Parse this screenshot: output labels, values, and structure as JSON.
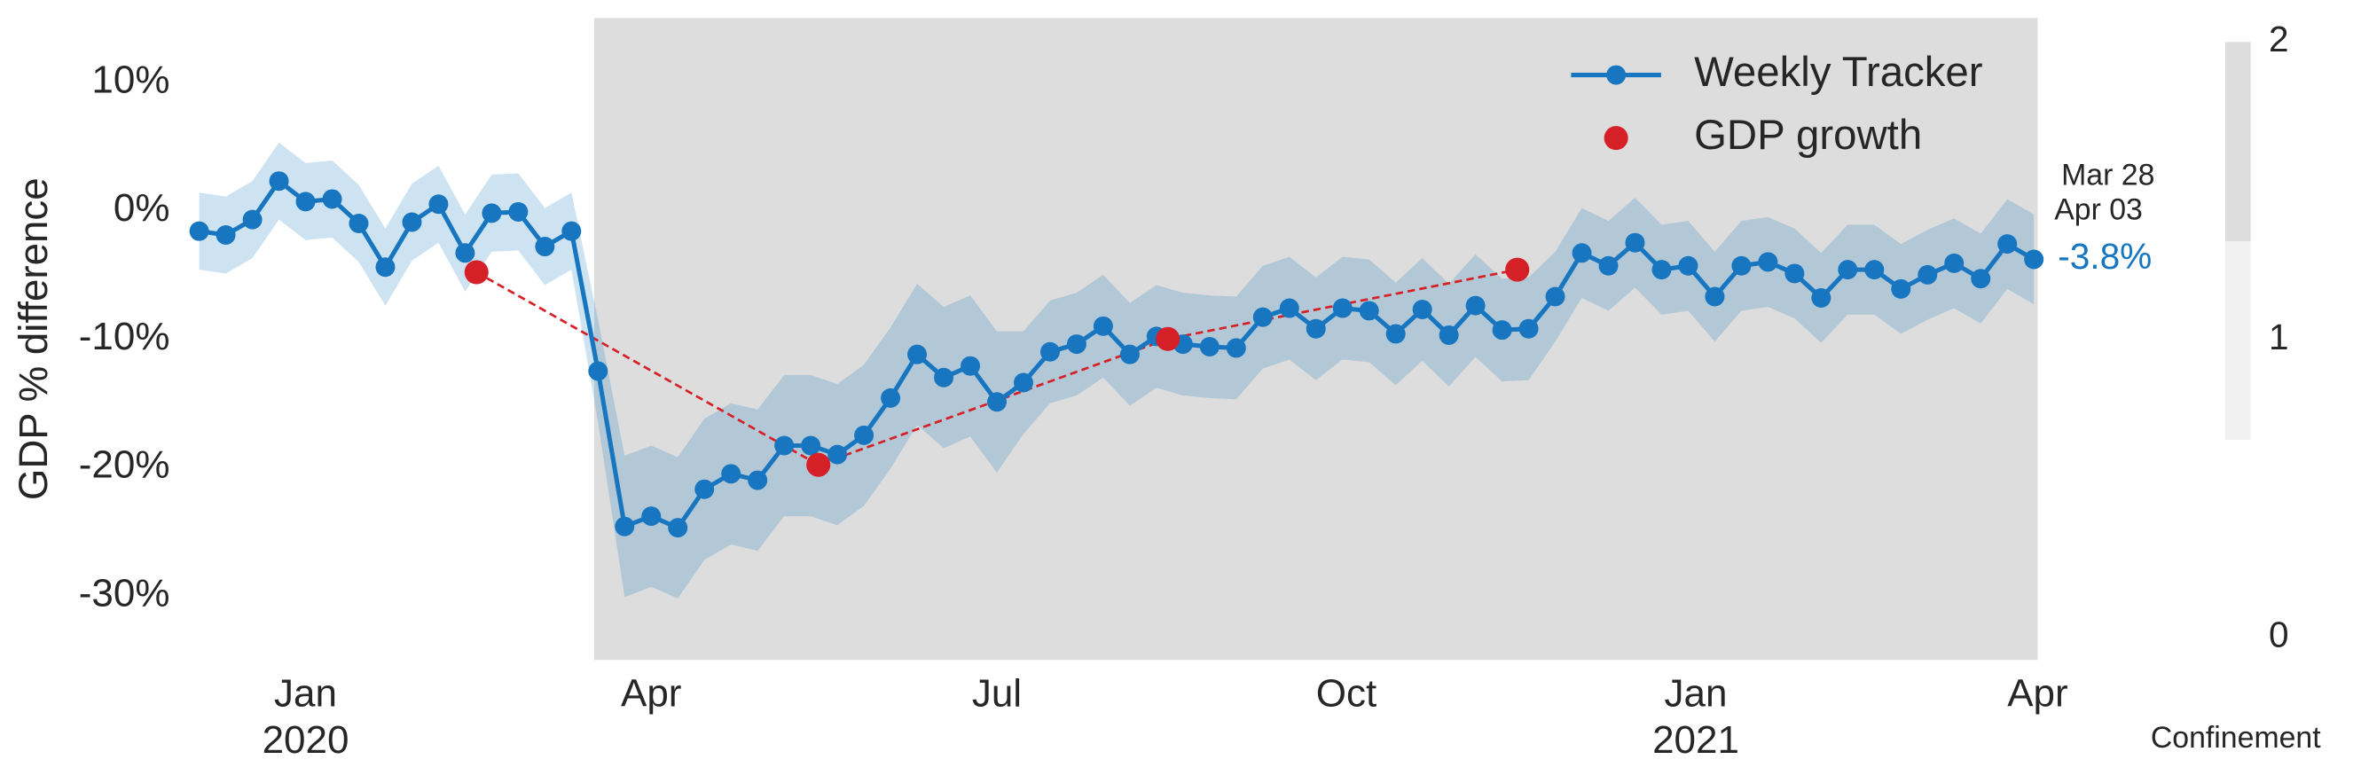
{
  "chart_data": {
    "type": "line",
    "y_label": "GDP % difference",
    "xlim": [
      "2019-12-01",
      "2021-04-01"
    ],
    "ylim": [
      -35,
      15
    ],
    "yticks": [
      {
        "value": 10,
        "label": "10%"
      },
      {
        "value": 0,
        "label": "0%"
      },
      {
        "value": -10,
        "label": "-10%"
      },
      {
        "value": -20,
        "label": "-20%"
      },
      {
        "value": -30,
        "label": "-30%"
      }
    ],
    "xticks": [
      {
        "value": "2020-01-01",
        "label": "Jan",
        "year": "2020"
      },
      {
        "value": "2020-04-01",
        "label": "Apr"
      },
      {
        "value": "2020-07-01",
        "label": "Jul"
      },
      {
        "value": "2020-10-01",
        "label": "Oct"
      },
      {
        "value": "2021-01-01",
        "label": "Jan",
        "year": "2021"
      },
      {
        "value": "2021-04-01",
        "label": "Apr"
      }
    ],
    "grid": false,
    "legend": "upper right",
    "x": [
      "2019-12-04",
      "2019-12-11",
      "2019-12-18",
      "2019-12-25",
      "2020-01-01",
      "2020-01-08",
      "2020-01-15",
      "2020-01-22",
      "2020-01-29",
      "2020-02-05",
      "2020-02-12",
      "2020-02-19",
      "2020-02-26",
      "2020-03-04",
      "2020-03-11",
      "2020-03-18",
      "2020-03-25",
      "2020-04-01",
      "2020-04-08",
      "2020-04-15",
      "2020-04-22",
      "2020-04-29",
      "2020-05-06",
      "2020-05-13",
      "2020-05-20",
      "2020-05-27",
      "2020-06-03",
      "2020-06-10",
      "2020-06-17",
      "2020-06-24",
      "2020-07-01",
      "2020-07-08",
      "2020-07-15",
      "2020-07-22",
      "2020-07-29",
      "2020-08-05",
      "2020-08-12",
      "2020-08-19",
      "2020-08-26",
      "2020-09-02",
      "2020-09-09",
      "2020-09-16",
      "2020-09-23",
      "2020-09-30",
      "2020-10-07",
      "2020-10-14",
      "2020-10-21",
      "2020-10-28",
      "2020-11-04",
      "2020-11-11",
      "2020-11-18",
      "2020-11-25",
      "2020-12-02",
      "2020-12-09",
      "2020-12-16",
      "2020-12-23",
      "2020-12-30",
      "2021-01-06",
      "2021-01-13",
      "2021-01-20",
      "2021-01-27",
      "2021-02-03",
      "2021-02-10",
      "2021-02-17",
      "2021-02-24",
      "2021-03-03",
      "2021-03-10",
      "2021-03-17",
      "2021-03-24",
      "2021-03-31"
    ],
    "series": [
      {
        "name": "Weekly Tracker",
        "color": "#1776bf",
        "values": [
          -1.6,
          -1.9,
          -0.7,
          2.3,
          0.7,
          0.9,
          -1.0,
          -4.4,
          -0.9,
          0.5,
          -3.3,
          -0.2,
          -0.1,
          -2.8,
          -1.6,
          -12.5,
          -24.6,
          -23.8,
          -24.7,
          -21.7,
          -20.5,
          -21.0,
          -18.3,
          -18.3,
          -19.0,
          -17.5,
          -14.6,
          -11.2,
          -13.0,
          -12.1,
          -14.9,
          -13.4,
          -11.0,
          -10.4,
          -9.0,
          -11.2,
          -9.8,
          -10.4,
          -10.6,
          -10.7,
          -8.3,
          -7.6,
          -9.2,
          -7.6,
          -7.8,
          -9.6,
          -7.7,
          -9.7,
          -7.4,
          -9.3,
          -9.2,
          -6.7,
          -3.3,
          -4.3,
          -2.5,
          -4.6,
          -4.3,
          -6.7,
          -4.3,
          -4.0,
          -4.9,
          -6.8,
          -4.6,
          -4.6,
          -6.1,
          -5.0,
          -4.1,
          -5.3,
          -2.6,
          -3.8
        ],
        "value_labels": [
          null,
          null,
          null,
          null,
          null,
          null,
          null,
          null,
          null,
          null,
          null,
          null,
          null,
          null,
          null,
          null,
          null,
          null,
          null,
          null,
          null,
          null,
          null,
          null,
          null,
          null,
          null,
          null,
          null,
          null,
          null,
          null,
          null,
          null,
          null,
          null,
          null,
          null,
          null,
          null,
          null,
          null,
          null,
          null,
          null,
          null,
          null,
          null,
          null,
          null,
          null,
          null,
          null,
          null,
          null,
          null,
          null,
          null,
          null,
          null,
          null,
          null,
          null,
          null,
          null,
          null,
          null,
          null,
          null,
          "-3.8%"
        ]
      },
      {
        "name": "GDP growth",
        "color": "#d62027",
        "x": [
          "2020-02-15",
          "2020-05-15",
          "2020-08-15",
          "2020-11-15"
        ],
        "values": [
          -4.8,
          -19.8,
          -10.0,
          -4.6
        ]
      }
    ],
    "band": {
      "color": "#1f7fc4",
      "opacity": 0.22,
      "lower": [
        -4.6,
        -4.9,
        -3.7,
        -0.7,
        -2.3,
        -2.1,
        -4.0,
        -7.4,
        -3.9,
        -2.5,
        -6.3,
        -3.2,
        -3.1,
        -5.8,
        -4.6,
        -16.5,
        -30.1,
        -29.3,
        -30.2,
        -27.2,
        -26.0,
        -26.5,
        -23.8,
        -23.8,
        -24.5,
        -23.0,
        -20.1,
        -16.7,
        -18.5,
        -17.6,
        -20.4,
        -17.4,
        -15.0,
        -14.4,
        -13.0,
        -15.2,
        -13.8,
        -14.4,
        -14.6,
        -14.7,
        -12.3,
        -11.6,
        -13.2,
        -11.6,
        -11.8,
        -13.6,
        -11.7,
        -13.7,
        -11.4,
        -13.3,
        -13.2,
        -10.2,
        -6.8,
        -7.8,
        -6.0,
        -8.1,
        -7.8,
        -10.2,
        -7.8,
        -7.5,
        -8.4,
        -10.3,
        -8.1,
        -8.1,
        -9.6,
        -8.5,
        -7.6,
        -8.8,
        -6.1,
        -7.3
      ],
      "upper": [
        1.4,
        1.1,
        2.3,
        5.3,
        3.7,
        3.9,
        2.0,
        -1.4,
        2.1,
        3.5,
        -0.3,
        2.8,
        2.9,
        0.2,
        1.4,
        -8.5,
        -19.1,
        -18.3,
        -19.2,
        -16.2,
        -15.0,
        -15.5,
        -12.8,
        -12.8,
        -13.5,
        -12.0,
        -9.1,
        -5.7,
        -7.5,
        -6.6,
        -9.4,
        -9.4,
        -7.0,
        -6.4,
        -5.0,
        -7.2,
        -5.8,
        -6.4,
        -6.6,
        -6.7,
        -4.3,
        -3.6,
        -5.2,
        -3.6,
        -3.8,
        -5.6,
        -3.7,
        -5.7,
        -3.4,
        -5.3,
        -5.2,
        -3.2,
        0.2,
        -0.8,
        1.0,
        -1.1,
        -0.8,
        -3.2,
        -0.8,
        -0.5,
        -1.4,
        -3.3,
        -1.1,
        -1.1,
        -2.6,
        -1.5,
        -0.6,
        -1.8,
        0.9,
        -0.3
      ]
    },
    "confinement": [
      {
        "start": "2020-03-17",
        "end": "2021-04-01",
        "level": 2
      }
    ],
    "colorbar": {
      "label": "Confinement",
      "lim": [
        0,
        2
      ],
      "ticks": [
        0,
        1,
        2
      ],
      "colors": [
        "#ffffff",
        "#f1f1f1",
        "#dddddd"
      ]
    },
    "annotation": [
      "Mar 28",
      "Apr 03"
    ]
  }
}
